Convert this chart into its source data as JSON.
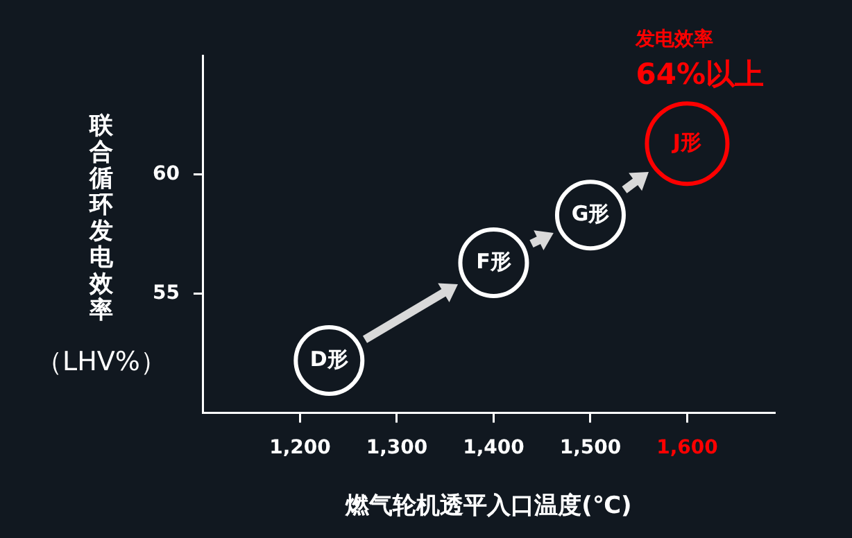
{
  "chart_data": {
    "type": "scatter",
    "xlabel": "燃气轮机透平入口温度(℃)",
    "ylabel": "联合循环发电效率（LHV%）",
    "x": [
      1230,
      1400,
      1500,
      1600
    ],
    "values": [
      52.2,
      56.3,
      58.3,
      61.3
    ],
    "colors": [
      "#ffffff",
      "#ffffff",
      "#ffffff",
      "#ff0000"
    ],
    "value_labels": [
      "D形",
      "F形",
      "G形",
      "J形"
    ],
    "marker": "circle",
    "xlim": [
      1100,
      1690
    ],
    "ylim": [
      50,
      65
    ],
    "xticks": [
      {
        "value": 1200,
        "label": "1,200"
      },
      {
        "value": 1300,
        "label": "1,300"
      },
      {
        "value": 1400,
        "label": "1,400"
      },
      {
        "value": 1500,
        "label": "1,500"
      },
      {
        "value": 1600,
        "label": "1,600"
      }
    ],
    "yticks": [
      55,
      60
    ],
    "annotations": [
      "发电效率",
      "64%以上"
    ],
    "grid": false,
    "legend": false
  }
}
